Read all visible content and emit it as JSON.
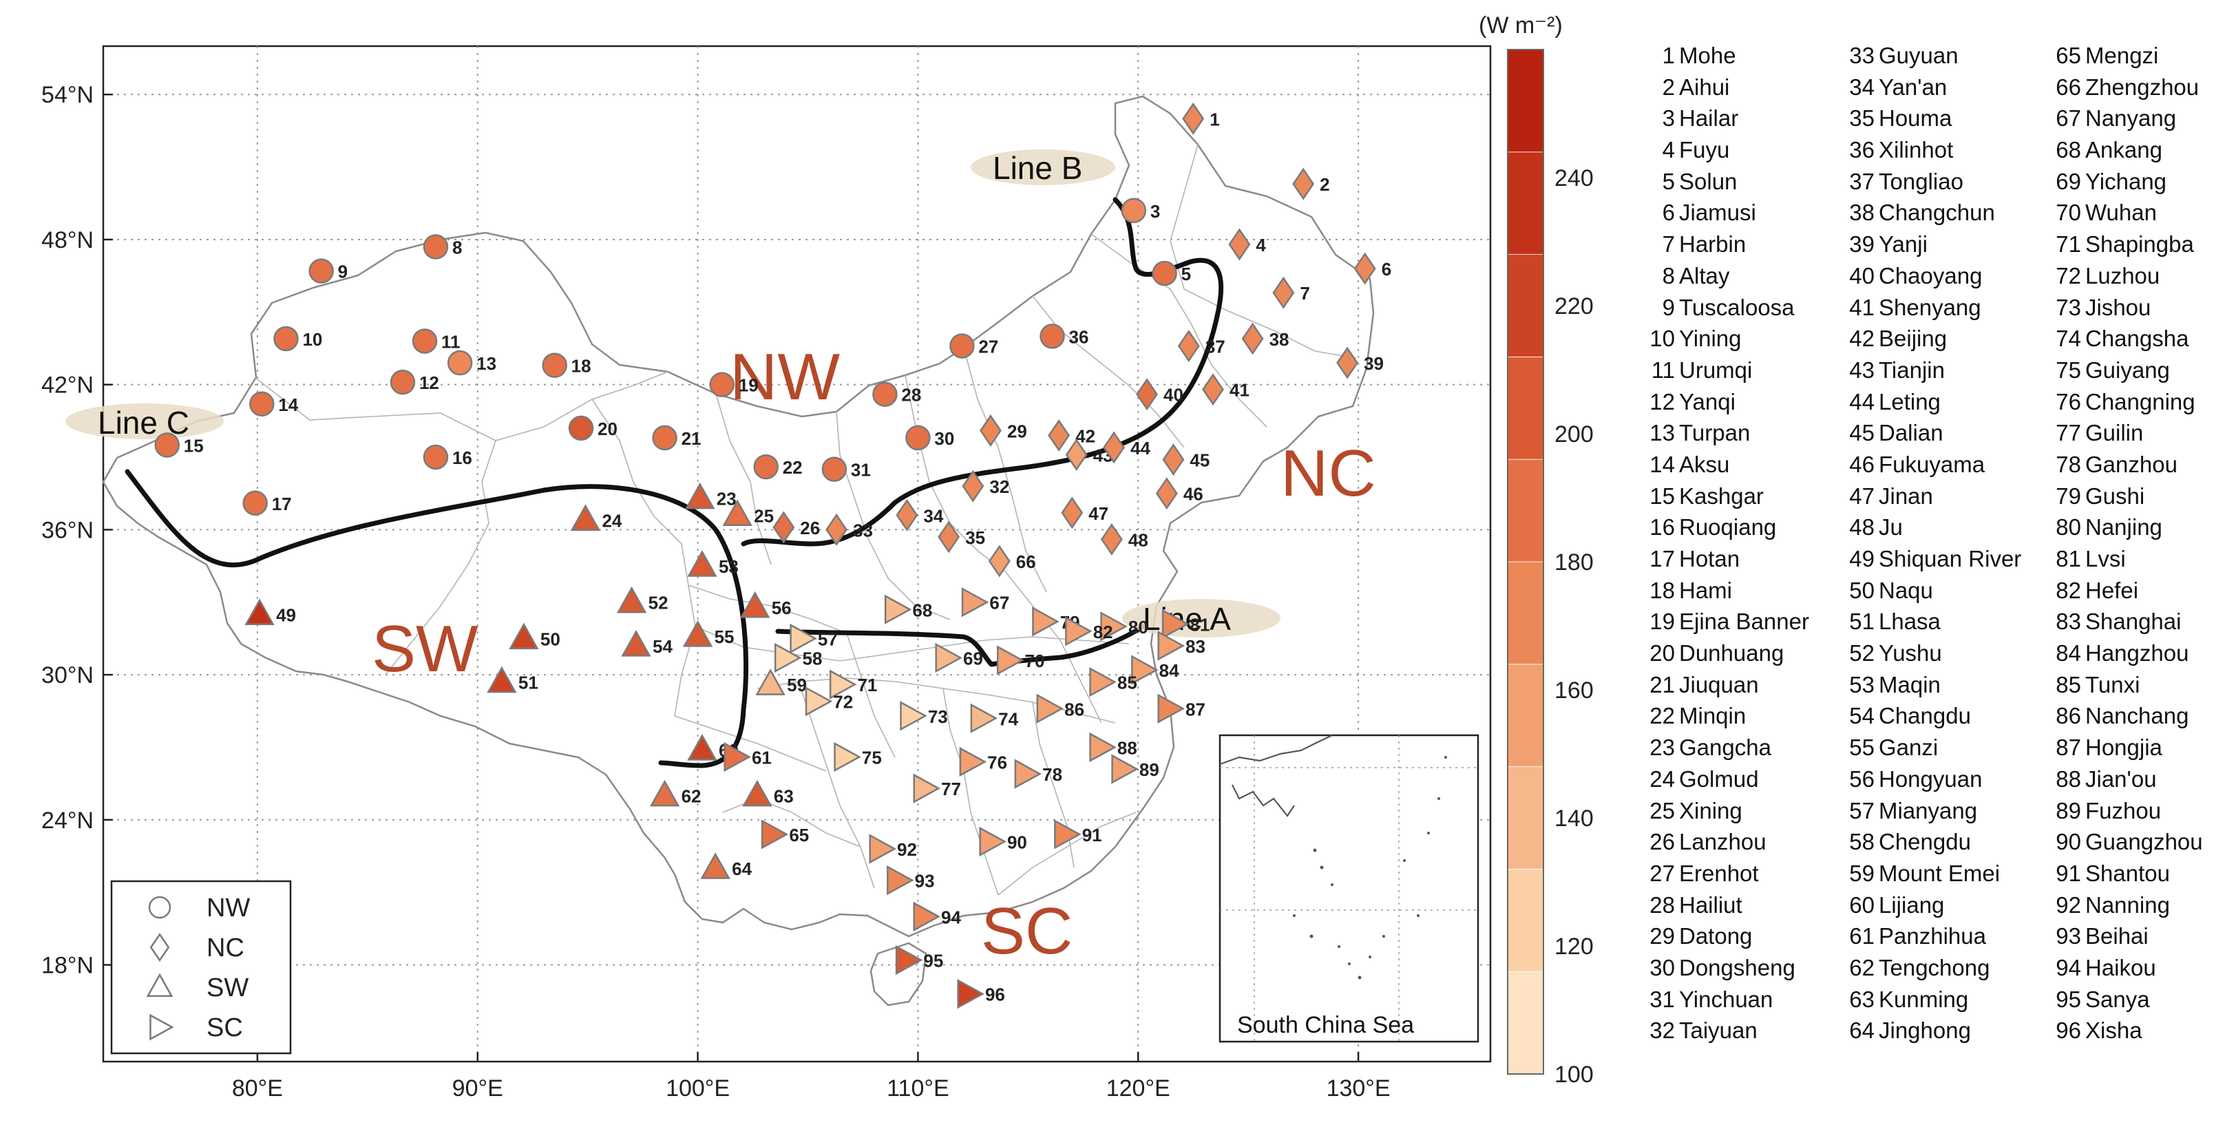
{
  "colorbar": {
    "unit": "(W m⁻²)",
    "min": 100,
    "max": 260,
    "ticks": [
      100,
      120,
      140,
      160,
      180,
      200,
      220,
      240
    ],
    "colors": [
      "#fde3c4",
      "#fbd0a6",
      "#f6b88a",
      "#f2a070",
      "#ec8858",
      "#e47146",
      "#d95a33",
      "#cc4424",
      "#c13219",
      "#b72211"
    ]
  },
  "axes": {
    "lon_ticks": [
      "80°E",
      "90°E",
      "100°E",
      "110°E",
      "120°E",
      "130°E"
    ],
    "lat_ticks": [
      "54°N",
      "48°N",
      "42°N",
      "36°N",
      "30°N",
      "24°N",
      "18°N"
    ],
    "lon_range": [
      73,
      136
    ],
    "lat_range": [
      14,
      56
    ]
  },
  "regions": [
    "NW",
    "NC",
    "SW",
    "SC"
  ],
  "lines": [
    "Line A",
    "Line B",
    "Line C"
  ],
  "inset_label": "South China Sea",
  "legend": [
    {
      "label": "NW",
      "symbol": "circle"
    },
    {
      "label": "NC",
      "symbol": "diamond"
    },
    {
      "label": "SW",
      "symbol": "triangle-up"
    },
    {
      "label": "SC",
      "symbol": "triangle-right"
    }
  ],
  "stations": [
    {
      "id": "1",
      "name": "Mohe",
      "lon": 122.5,
      "lat": 53.0,
      "region": "NC",
      "value": 165
    },
    {
      "id": "2",
      "name": "Aihui",
      "lon": 127.5,
      "lat": 50.3,
      "region": "NC",
      "value": 165
    },
    {
      "id": "3",
      "name": "Hailar",
      "lon": 119.8,
      "lat": 49.2,
      "region": "NW",
      "value": 170
    },
    {
      "id": "4",
      "name": "Fuyu",
      "lon": 124.6,
      "lat": 47.8,
      "region": "NC",
      "value": 175
    },
    {
      "id": "5",
      "name": "Solun",
      "lon": 121.2,
      "lat": 46.6,
      "region": "NW",
      "value": 180
    },
    {
      "id": "6",
      "name": "Jiamusi",
      "lon": 130.3,
      "lat": 46.8,
      "region": "NC",
      "value": 170
    },
    {
      "id": "7",
      "name": "Harbin",
      "lon": 126.6,
      "lat": 45.8,
      "region": "NC",
      "value": 170
    },
    {
      "id": "8",
      "name": "Altay",
      "lon": 88.1,
      "lat": 47.7,
      "region": "NW",
      "value": 185
    },
    {
      "id": "9",
      "name": "Tuscaloosa",
      "lon": 82.9,
      "lat": 46.7,
      "region": "NW",
      "value": 185
    },
    {
      "id": "10",
      "name": "Yining",
      "lon": 81.3,
      "lat": 43.9,
      "region": "NW",
      "value": 185
    },
    {
      "id": "11",
      "name": "Urumqi",
      "lon": 87.6,
      "lat": 43.8,
      "region": "NW",
      "value": 180
    },
    {
      "id": "12",
      "name": "Yanqi",
      "lon": 86.6,
      "lat": 42.1,
      "region": "NW",
      "value": 190
    },
    {
      "id": "13",
      "name": "Turpan",
      "lon": 89.2,
      "lat": 42.9,
      "region": "NW",
      "value": 175
    },
    {
      "id": "14",
      "name": "Aksu",
      "lon": 80.2,
      "lat": 41.2,
      "region": "NW",
      "value": 190
    },
    {
      "id": "15",
      "name": "Kashgar",
      "lon": 75.9,
      "lat": 39.5,
      "region": "NW",
      "value": 195
    },
    {
      "id": "16",
      "name": "Ruoqiang",
      "lon": 88.1,
      "lat": 39.0,
      "region": "NW",
      "value": 195
    },
    {
      "id": "17",
      "name": "Hotan",
      "lon": 79.9,
      "lat": 37.1,
      "region": "NW",
      "value": 195
    },
    {
      "id": "18",
      "name": "Hami",
      "lon": 93.5,
      "lat": 42.8,
      "region": "NW",
      "value": 190
    },
    {
      "id": "19",
      "name": "Ejina Banner",
      "lon": 101.1,
      "lat": 42.0,
      "region": "NW",
      "value": 195
    },
    {
      "id": "20",
      "name": "Dunhuang",
      "lon": 94.7,
      "lat": 40.2,
      "region": "NW",
      "value": 200
    },
    {
      "id": "21",
      "name": "Jiuquan",
      "lon": 98.5,
      "lat": 39.8,
      "region": "NW",
      "value": 195
    },
    {
      "id": "22",
      "name": "Minqin",
      "lon": 103.1,
      "lat": 38.6,
      "region": "NW",
      "value": 195
    },
    {
      "id": "23",
      "name": "Gangcha",
      "lon": 100.1,
      "lat": 37.3,
      "region": "SW",
      "value": 205
    },
    {
      "id": "24",
      "name": "Golmud",
      "lon": 94.9,
      "lat": 36.4,
      "region": "SW",
      "value": 210
    },
    {
      "id": "25",
      "name": "Xining",
      "lon": 101.8,
      "lat": 36.6,
      "region": "SW",
      "value": 195
    },
    {
      "id": "26",
      "name": "Lanzhou",
      "lon": 103.9,
      "lat": 36.1,
      "region": "NC",
      "value": 180
    },
    {
      "id": "27",
      "name": "Erenhot",
      "lon": 112.0,
      "lat": 43.6,
      "region": "NW",
      "value": 195
    },
    {
      "id": "28",
      "name": "Hailiut",
      "lon": 108.5,
      "lat": 41.6,
      "region": "NW",
      "value": 190
    },
    {
      "id": "29",
      "name": "Datong",
      "lon": 113.3,
      "lat": 40.1,
      "region": "NC",
      "value": 175
    },
    {
      "id": "30",
      "name": "Dongsheng",
      "lon": 110.0,
      "lat": 39.8,
      "region": "NW",
      "value": 190
    },
    {
      "id": "31",
      "name": "Yinchuan",
      "lon": 106.2,
      "lat": 38.5,
      "region": "NW",
      "value": 190
    },
    {
      "id": "32",
      "name": "Taiyuan",
      "lon": 112.5,
      "lat": 37.8,
      "region": "NC",
      "value": 175
    },
    {
      "id": "33",
      "name": "Guyuan",
      "lon": 106.3,
      "lat": 36.0,
      "region": "NC",
      "value": 175
    },
    {
      "id": "34",
      "name": "Yan'an",
      "lon": 109.5,
      "lat": 36.6,
      "region": "NC",
      "value": 175
    },
    {
      "id": "35",
      "name": "Houma",
      "lon": 111.4,
      "lat": 35.7,
      "region": "NC",
      "value": 170
    },
    {
      "id": "36",
      "name": "Xilinhot",
      "lon": 116.1,
      "lat": 44.0,
      "region": "NW",
      "value": 190
    },
    {
      "id": "37",
      "name": "Tongliao",
      "lon": 122.3,
      "lat": 43.6,
      "region": "NC",
      "value": 175
    },
    {
      "id": "38",
      "name": "Changchun",
      "lon": 125.2,
      "lat": 43.9,
      "region": "NC",
      "value": 170
    },
    {
      "id": "39",
      "name": "Yanji",
      "lon": 129.5,
      "lat": 42.9,
      "region": "NC",
      "value": 170
    },
    {
      "id": "40",
      "name": "Chaoyang",
      "lon": 120.4,
      "lat": 41.6,
      "region": "NC",
      "value": 180
    },
    {
      "id": "41",
      "name": "Shenyang",
      "lon": 123.4,
      "lat": 41.8,
      "region": "NC",
      "value": 165
    },
    {
      "id": "42",
      "name": "Beijing",
      "lon": 116.4,
      "lat": 39.9,
      "region": "NC",
      "value": 165
    },
    {
      "id": "43",
      "name": "Tianjin",
      "lon": 117.2,
      "lat": 39.1,
      "region": "NC",
      "value": 160
    },
    {
      "id": "44",
      "name": "Leting",
      "lon": 118.9,
      "lat": 39.4,
      "region": "NC",
      "value": 170
    },
    {
      "id": "45",
      "name": "Dalian",
      "lon": 121.6,
      "lat": 38.9,
      "region": "NC",
      "value": 165
    },
    {
      "id": "46",
      "name": "Fukuyama",
      "lon": 121.3,
      "lat": 37.5,
      "region": "NC",
      "value": 175
    },
    {
      "id": "47",
      "name": "Jinan",
      "lon": 117.0,
      "lat": 36.7,
      "region": "NC",
      "value": 165
    },
    {
      "id": "48",
      "name": "Ju",
      "lon": 118.8,
      "lat": 35.6,
      "region": "NC",
      "value": 170
    },
    {
      "id": "49",
      "name": "Shiquan River",
      "lon": 80.1,
      "lat": 32.5,
      "region": "SW",
      "value": 235
    },
    {
      "id": "50",
      "name": "Naqu",
      "lon": 92.1,
      "lat": 31.5,
      "region": "SW",
      "value": 215
    },
    {
      "id": "51",
      "name": "Lhasa",
      "lon": 91.1,
      "lat": 29.7,
      "region": "SW",
      "value": 225
    },
    {
      "id": "52",
      "name": "Yushu",
      "lon": 97.0,
      "lat": 33.0,
      "region": "SW",
      "value": 205
    },
    {
      "id": "53",
      "name": "Maqin",
      "lon": 100.2,
      "lat": 34.5,
      "region": "SW",
      "value": 200
    },
    {
      "id": "54",
      "name": "Changdu",
      "lon": 97.2,
      "lat": 31.2,
      "region": "SW",
      "value": 200
    },
    {
      "id": "55",
      "name": "Ganzi",
      "lon": 100.0,
      "lat": 31.6,
      "region": "SW",
      "value": 200
    },
    {
      "id": "56",
      "name": "Hongyuan",
      "lon": 102.6,
      "lat": 32.8,
      "region": "SW",
      "value": 200
    },
    {
      "id": "57",
      "name": "Mianyang",
      "lon": 104.7,
      "lat": 31.5,
      "region": "SC",
      "value": 125
    },
    {
      "id": "58",
      "name": "Chengdu",
      "lon": 104.0,
      "lat": 30.7,
      "region": "SC",
      "value": 120
    },
    {
      "id": "59",
      "name": "Mount Emei",
      "lon": 103.3,
      "lat": 29.6,
      "region": "SW",
      "value": 145
    },
    {
      "id": "60",
      "name": "Lijiang",
      "lon": 100.2,
      "lat": 26.9,
      "region": "SW",
      "value": 215
    },
    {
      "id": "61",
      "name": "Panzhihua",
      "lon": 101.7,
      "lat": 26.6,
      "region": "SC",
      "value": 190
    },
    {
      "id": "62",
      "name": "Tengchong",
      "lon": 98.5,
      "lat": 25.0,
      "region": "SW",
      "value": 190
    },
    {
      "id": "63",
      "name": "Kunming",
      "lon": 102.7,
      "lat": 25.0,
      "region": "SW",
      "value": 200
    },
    {
      "id": "64",
      "name": "Jinghong",
      "lon": 100.8,
      "lat": 22.0,
      "region": "SW",
      "value": 195
    },
    {
      "id": "65",
      "name": "Mengzi",
      "lon": 103.4,
      "lat": 23.4,
      "region": "SC",
      "value": 195
    },
    {
      "id": "66",
      "name": "Zhengzhou",
      "lon": 113.7,
      "lat": 34.7,
      "region": "NC",
      "value": 160
    },
    {
      "id": "67",
      "name": "Nanyang",
      "lon": 112.5,
      "lat": 33.0,
      "region": "SC",
      "value": 160
    },
    {
      "id": "68",
      "name": "Ankang",
      "lon": 109.0,
      "lat": 32.7,
      "region": "SC",
      "value": 145
    },
    {
      "id": "69",
      "name": "Yichang",
      "lon": 111.3,
      "lat": 30.7,
      "region": "SC",
      "value": 145
    },
    {
      "id": "70",
      "name": "Wuhan",
      "lon": 114.1,
      "lat": 30.6,
      "region": "SC",
      "value": 150
    },
    {
      "id": "71",
      "name": "Shapingba",
      "lon": 106.5,
      "lat": 29.6,
      "region": "SC",
      "value": 125
    },
    {
      "id": "72",
      "name": "Luzhou",
      "lon": 105.4,
      "lat": 28.9,
      "region": "SC",
      "value": 130
    },
    {
      "id": "73",
      "name": "Jishou",
      "lon": 109.7,
      "lat": 28.3,
      "region": "SC",
      "value": 130
    },
    {
      "id": "74",
      "name": "Changsha",
      "lon": 112.9,
      "lat": 28.2,
      "region": "SC",
      "value": 145
    },
    {
      "id": "75",
      "name": "Guiyang",
      "lon": 106.7,
      "lat": 26.6,
      "region": "SC",
      "value": 130
    },
    {
      "id": "76",
      "name": "Changning",
      "lon": 112.4,
      "lat": 26.4,
      "region": "SC",
      "value": 150
    },
    {
      "id": "77",
      "name": "Guilin",
      "lon": 110.3,
      "lat": 25.3,
      "region": "SC",
      "value": 145
    },
    {
      "id": "78",
      "name": "Ganzhou",
      "lon": 114.9,
      "lat": 25.9,
      "region": "SC",
      "value": 155
    },
    {
      "id": "79",
      "name": "Gushi",
      "lon": 115.7,
      "lat": 32.2,
      "region": "SC",
      "value": 160
    },
    {
      "id": "80",
      "name": "Nanjing",
      "lon": 118.8,
      "lat": 32.0,
      "region": "SC",
      "value": 150
    },
    {
      "id": "81",
      "name": "Lvsi",
      "lon": 121.6,
      "lat": 32.1,
      "region": "SC",
      "value": 165
    },
    {
      "id": "82",
      "name": "Hefei",
      "lon": 117.2,
      "lat": 31.8,
      "region": "SC",
      "value": 155
    },
    {
      "id": "83",
      "name": "Shanghai",
      "lon": 121.4,
      "lat": 31.2,
      "region": "SC",
      "value": 160
    },
    {
      "id": "84",
      "name": "Hangzhou",
      "lon": 120.2,
      "lat": 30.2,
      "region": "SC",
      "value": 155
    },
    {
      "id": "85",
      "name": "Tunxi",
      "lon": 118.3,
      "lat": 29.7,
      "region": "SC",
      "value": 150
    },
    {
      "id": "86",
      "name": "Nanchang",
      "lon": 115.9,
      "lat": 28.6,
      "region": "SC",
      "value": 160
    },
    {
      "id": "87",
      "name": "Hongjia",
      "lon": 121.4,
      "lat": 28.6,
      "region": "SC",
      "value": 165
    },
    {
      "id": "88",
      "name": "Jian'ou",
      "lon": 118.3,
      "lat": 27.0,
      "region": "SC",
      "value": 155
    },
    {
      "id": "89",
      "name": "Fuzhou",
      "lon": 119.3,
      "lat": 26.1,
      "region": "SC",
      "value": 160
    },
    {
      "id": "90",
      "name": "Guangzhou",
      "lon": 113.3,
      "lat": 23.1,
      "region": "SC",
      "value": 150
    },
    {
      "id": "91",
      "name": "Shantou",
      "lon": 116.7,
      "lat": 23.4,
      "region": "SC",
      "value": 165
    },
    {
      "id": "92",
      "name": "Nanning",
      "lon": 108.3,
      "lat": 22.8,
      "region": "SC",
      "value": 150
    },
    {
      "id": "93",
      "name": "Beihai",
      "lon": 109.1,
      "lat": 21.5,
      "region": "SC",
      "value": 170
    },
    {
      "id": "94",
      "name": "Haikou",
      "lon": 110.3,
      "lat": 20.0,
      "region": "SC",
      "value": 175
    },
    {
      "id": "95",
      "name": "Sanya",
      "lon": 109.5,
      "lat": 18.2,
      "region": "SC",
      "value": 200
    },
    {
      "id": "96",
      "name": "Xisha",
      "lon": 112.3,
      "lat": 16.8,
      "region": "SC",
      "value": 215
    }
  ]
}
